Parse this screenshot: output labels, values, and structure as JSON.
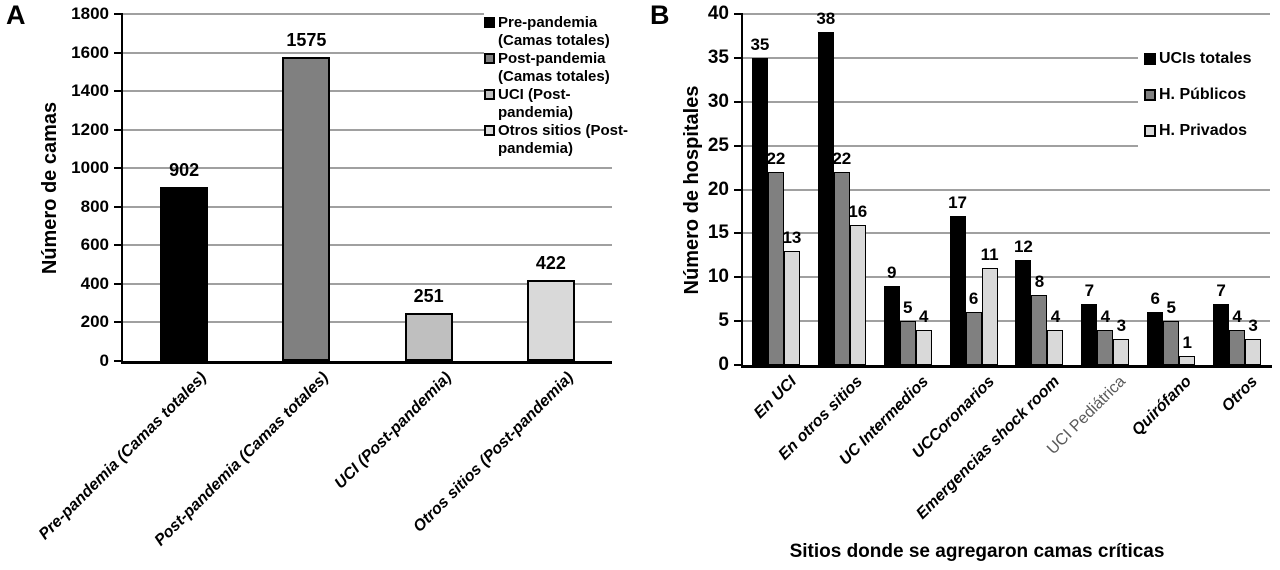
{
  "figure": {
    "panel_a_label": "A",
    "panel_b_label": "B"
  },
  "colors": {
    "black": "#000000",
    "mid_gray": "#808080",
    "light_gray": "#bfbfbf",
    "lighter_gray": "#d9d9d9",
    "gridline": "#a0a0a0",
    "muted_label": "#595959",
    "axis": "#000000",
    "background": "#ffffff"
  },
  "chart_data": [
    {
      "panel": "A",
      "type": "bar",
      "title": "",
      "xlabel": "",
      "ylabel": "Número de camas",
      "ylim": [
        0,
        1800
      ],
      "ytick_step": 200,
      "yticks": [
        0,
        200,
        400,
        600,
        800,
        1000,
        1200,
        1400,
        1600,
        1800
      ],
      "grid": true,
      "legend_position": "top-right-overlay",
      "categories": [
        "Pre-pandemia (Camas totales)",
        "Post-pandemia (Camas totales)",
        "UCI (Post-pandemia)",
        "Otros sitios (Post-pandemia)"
      ],
      "values": [
        902,
        1575,
        251,
        422
      ],
      "bar_colors": [
        "#000000",
        "#808080",
        "#bfbfbf",
        "#d9d9d9"
      ],
      "legend": [
        {
          "label": "Pre-pandemia\n(Camas totales)",
          "color": "#000000"
        },
        {
          "label": "Post-pandemia\n(Camas totales)",
          "color": "#808080"
        },
        {
          "label": "UCI (Post-\npandemia)",
          "color": "#bfbfbf"
        },
        {
          "label": "Otros sitios (Post-\npandemia)",
          "color": "#d9d9d9"
        }
      ]
    },
    {
      "panel": "B",
      "type": "bar",
      "title": "",
      "xlabel": "Sitios donde se agregaron camas críticas",
      "ylabel": "Número de hospitales",
      "ylim": [
        0,
        40
      ],
      "ytick_step": 5,
      "yticks": [
        0,
        5,
        10,
        15,
        20,
        25,
        30,
        35,
        40
      ],
      "grid": true,
      "legend_position": "right-overlay",
      "categories": [
        "En UCI",
        "En otros sitios",
        "UC Intermedios",
        "UCCoronarios",
        "Emergencias shock room",
        "UCI Pediátrica",
        "Quirófano",
        "Otros"
      ],
      "muted_category_index": 5,
      "series": [
        {
          "name": "UCIs totales",
          "color": "#000000",
          "values": [
            35,
            38,
            9,
            17,
            12,
            7,
            6,
            7
          ]
        },
        {
          "name": "H. Públicos",
          "color": "#808080",
          "values": [
            22,
            22,
            5,
            6,
            8,
            4,
            5,
            4
          ]
        },
        {
          "name": "H. Privados",
          "color": "#d9d9d9",
          "values": [
            13,
            16,
            4,
            11,
            4,
            3,
            1,
            3
          ]
        }
      ]
    }
  ]
}
